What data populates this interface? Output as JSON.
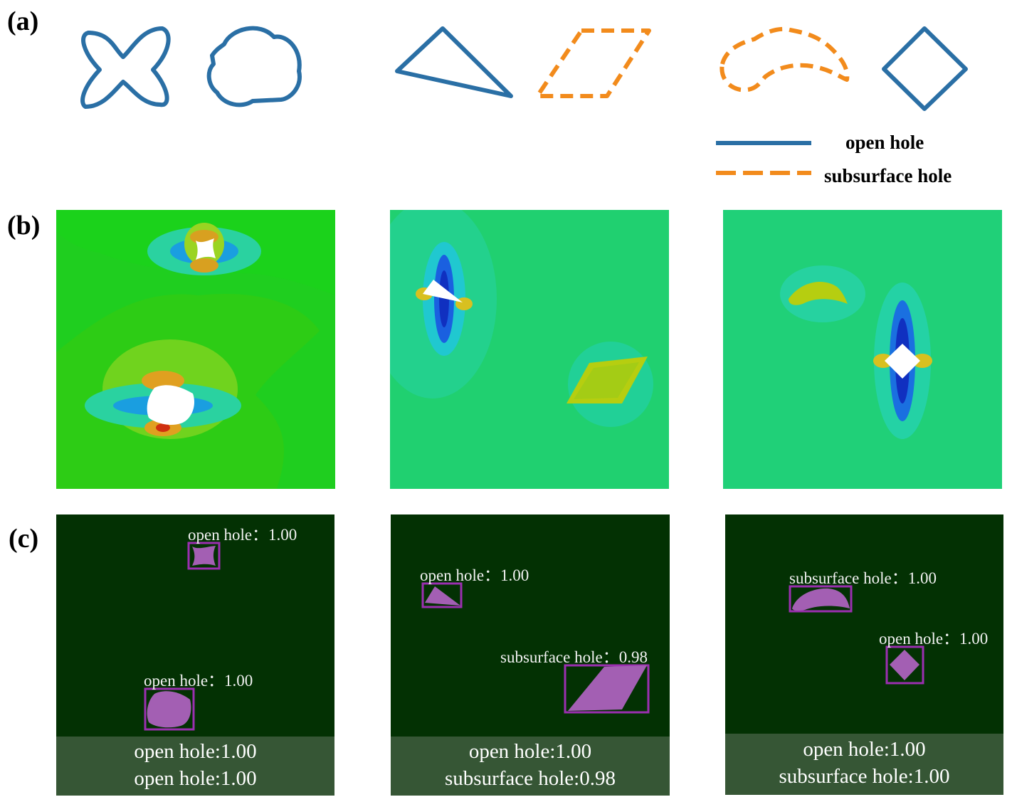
{
  "panels": {
    "a": {
      "label": "(a)"
    },
    "b": {
      "label": "(b)"
    },
    "c": {
      "label": "(c)"
    }
  },
  "legend": {
    "open_hole": "open hole",
    "subsurface_hole": "subsurface hole",
    "colors": {
      "open": "#2a6fa5",
      "subsurface": "#f28b1c"
    }
  },
  "shapes": [
    {
      "name": "four-lobed-star",
      "type": "open hole"
    },
    {
      "name": "blob",
      "type": "open hole"
    },
    {
      "name": "triangle",
      "type": "open hole"
    },
    {
      "name": "parallelogram",
      "type": "subsurface hole"
    },
    {
      "name": "crescent",
      "type": "subsurface hole"
    },
    {
      "name": "diamond",
      "type": "open hole"
    }
  ],
  "detections": [
    {
      "boxes": [
        {
          "label": "open hole：1.00"
        },
        {
          "label": "open hole：1.00"
        }
      ],
      "summary": [
        "open hole:1.00",
        "open hole:1.00"
      ]
    },
    {
      "boxes": [
        {
          "label": "open hole：1.00"
        },
        {
          "label": "subsurface hole：0.98"
        }
      ],
      "summary": [
        "open hole:1.00",
        "subsurface hole:0.98"
      ]
    },
    {
      "boxes": [
        {
          "label": "subsurface hole：1.00"
        },
        {
          "label": "open hole：1.00"
        }
      ],
      "summary": [
        "open hole:1.00",
        "subsurface hole:1.00"
      ]
    }
  ],
  "colors": {
    "detection_bg": "#033103",
    "summary_bg": "#365635",
    "mask": "#a35fb3",
    "box": "#9b2fb0",
    "field_green": "#22cc22",
    "field_cyan": "#18d49a"
  }
}
